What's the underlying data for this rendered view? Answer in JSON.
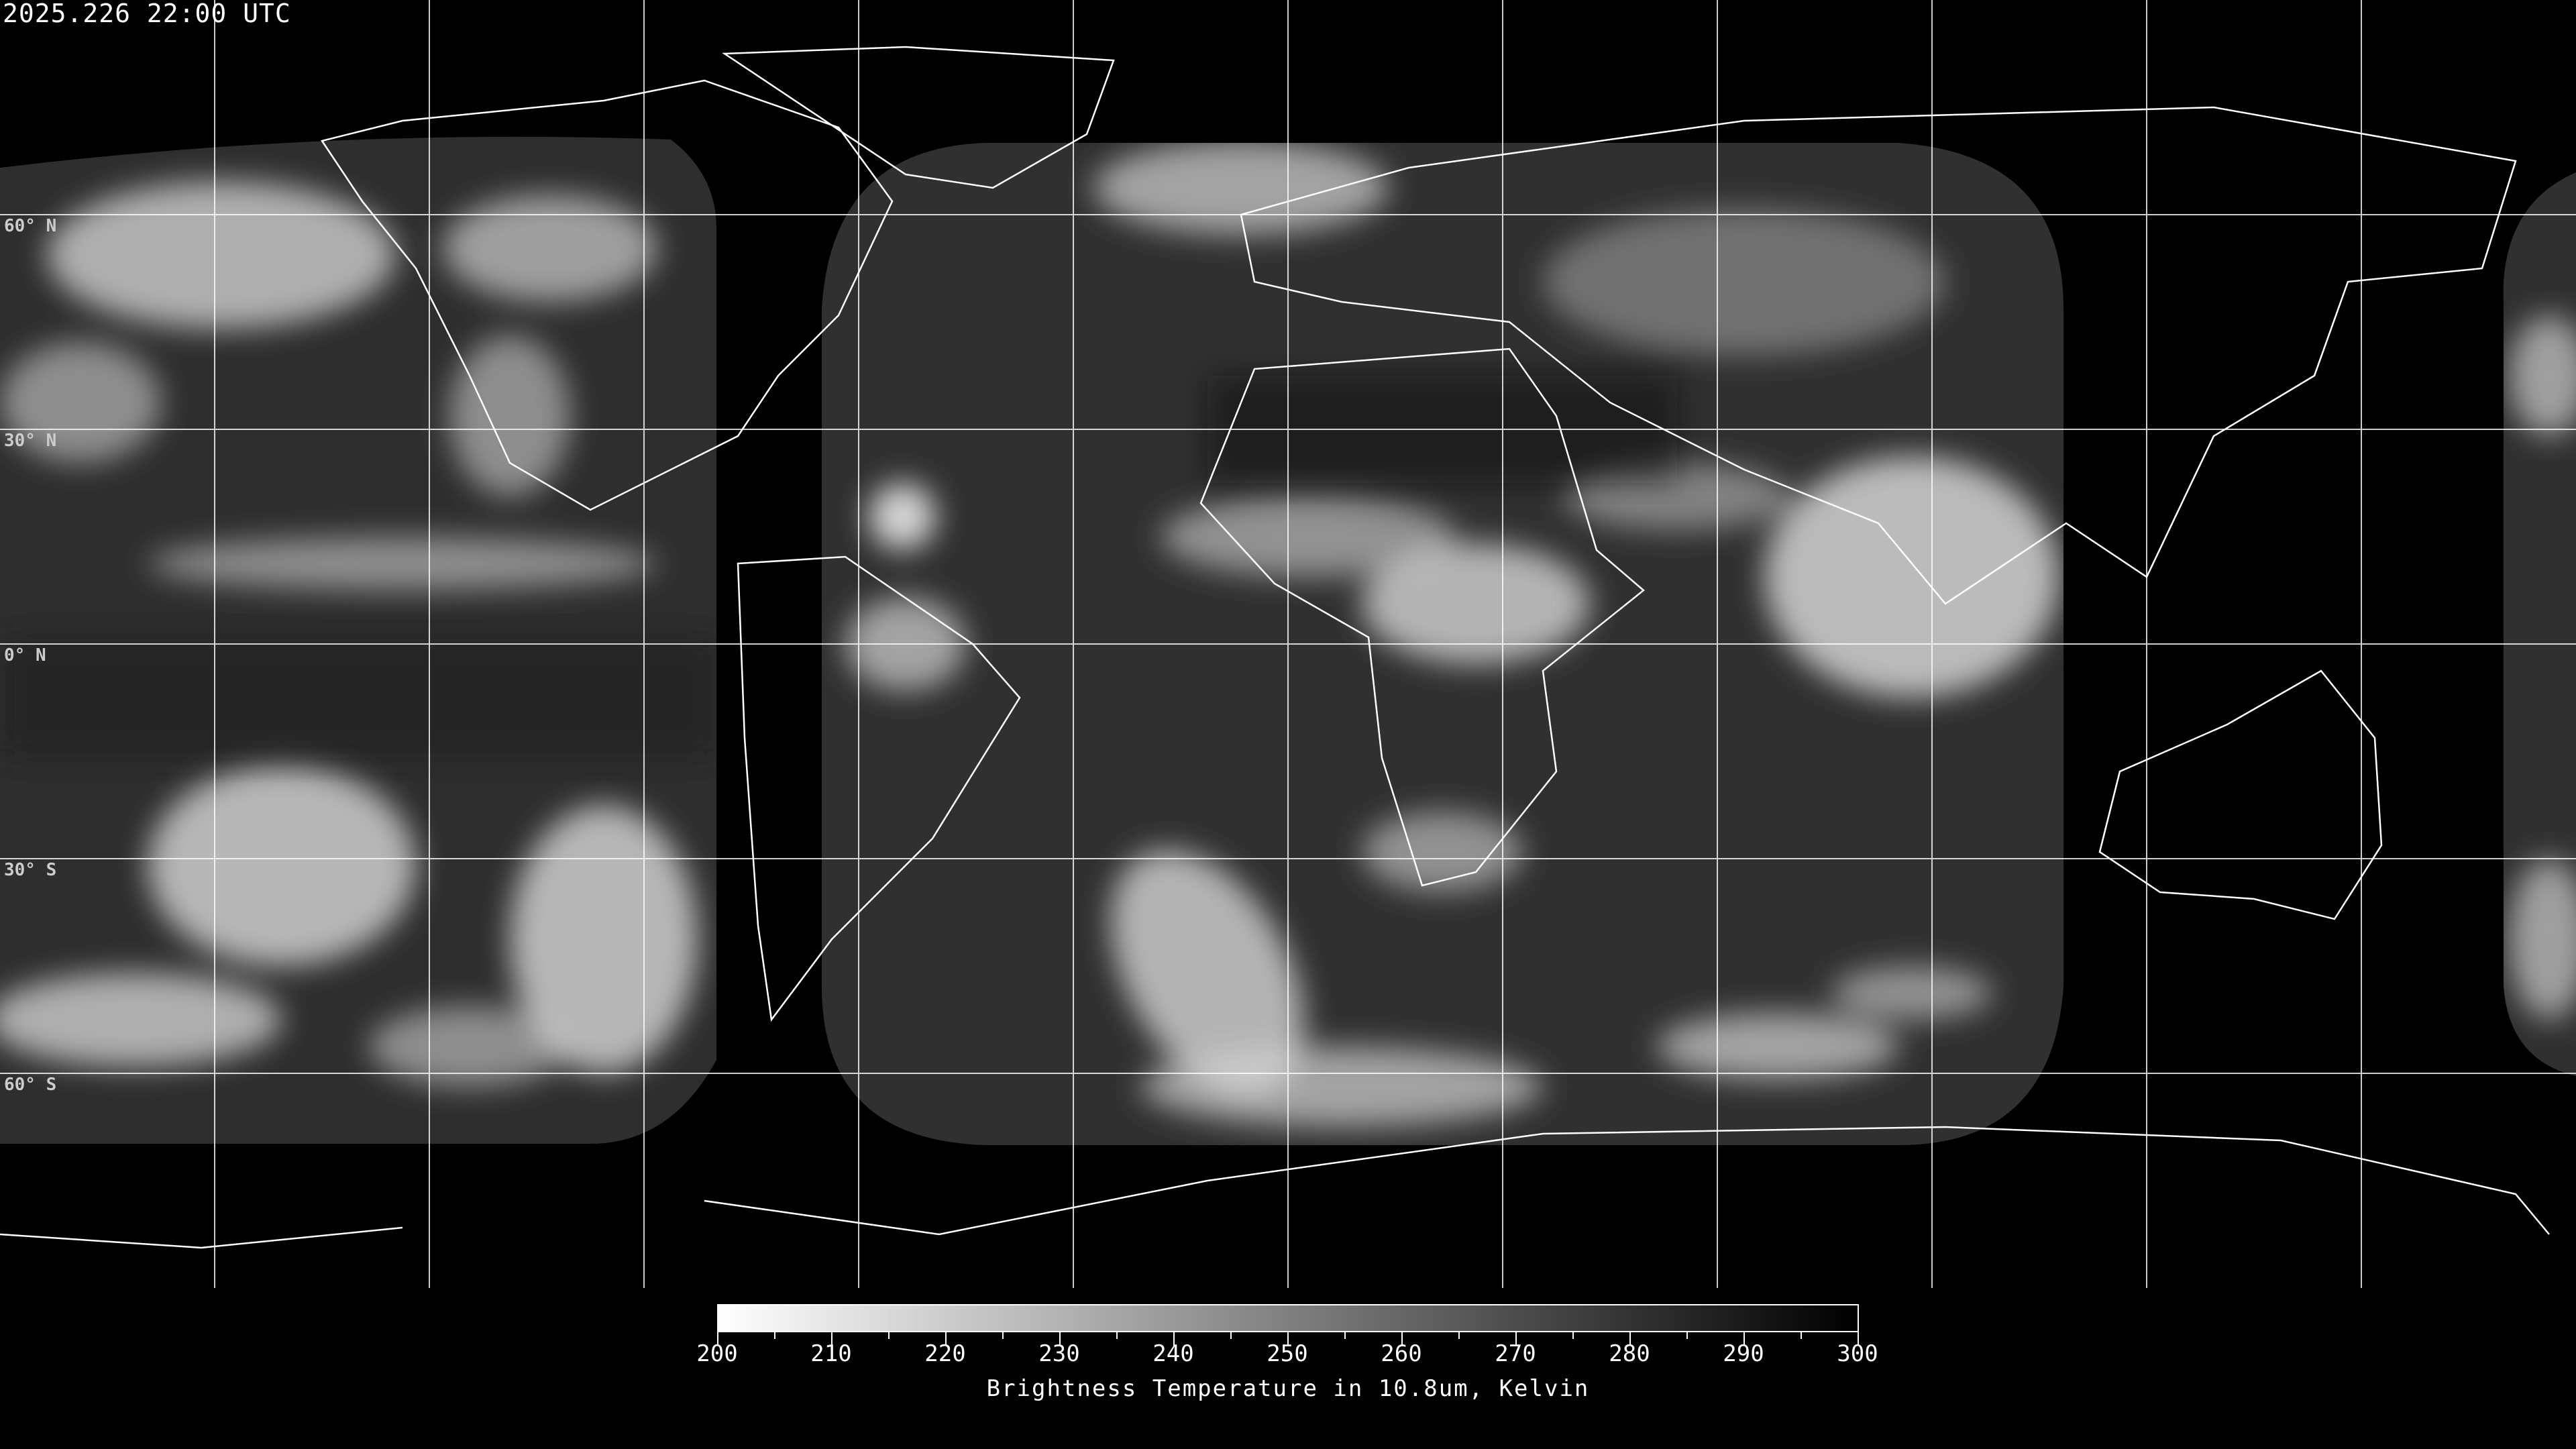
{
  "timestamp": "2025.226 22:00 UTC",
  "map": {
    "projection": "equirectangular",
    "lon_range": [
      -180,
      180
    ],
    "lat_range": [
      -90,
      90
    ],
    "grid_spacing_deg": 30,
    "lat_labels": [
      "60° N",
      "30° N",
      "0° N",
      "30° S",
      "60° S"
    ],
    "coastline_color": "#ffffff",
    "gridline_color": "#ffffff"
  },
  "colorbar": {
    "min": 200,
    "max": 300,
    "colormap": "inverted greyscale (200 white → 300 black)",
    "tick_labels": [
      "200",
      "210",
      "220",
      "230",
      "240",
      "250",
      "260",
      "270",
      "280",
      "290",
      "300"
    ],
    "title": "Brightness Temperature in 10.8um, Kelvin"
  }
}
